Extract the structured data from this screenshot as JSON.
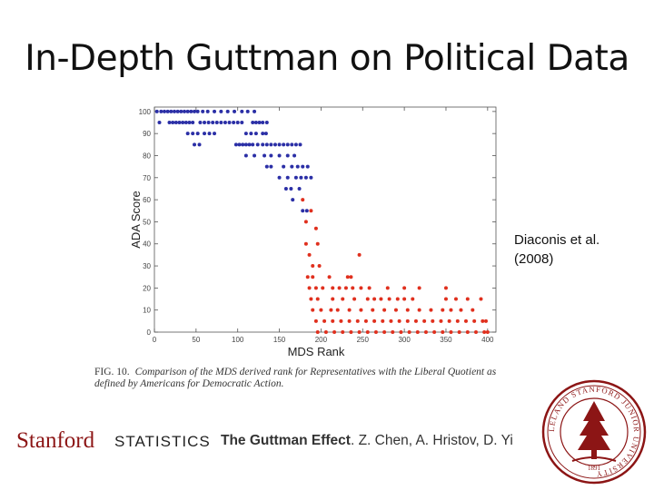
{
  "slide": {
    "title": "In-Depth Guttman on Political Data",
    "citation_line1": "Diaconis et al.",
    "citation_line2": "(2008)",
    "caption_fig": "FIG. 10.",
    "caption_text": "Comparison of the MDS derived rank for Representatives with the Liberal Quotient as defined by Americans for Democratic Action."
  },
  "footer": {
    "logo": "Stanford",
    "department": "STATISTICS",
    "credit_bold": "The Guttman Effect",
    "credit_rest": ". Z. Chen, A. Hristov, D. Yi"
  },
  "seal": {
    "text": "LELAND STANFORD JUNIOR UNIVERSITY",
    "year": "1891"
  },
  "colors": {
    "blue": "#2b2fa6",
    "red": "#e0301e",
    "brand": "#8c1515"
  },
  "chart_data": {
    "type": "scatter",
    "xlabel": "MDS Rank",
    "ylabel": "ADA Score",
    "xlim": [
      0,
      410
    ],
    "ylim": [
      0,
      102
    ],
    "xticks": [
      0,
      50,
      100,
      150,
      200,
      250,
      300,
      350,
      400
    ],
    "yticks": [
      0,
      10,
      20,
      30,
      40,
      50,
      60,
      70,
      80,
      90,
      100
    ],
    "grid": false,
    "series": [
      {
        "color": "#2b2fa6",
        "points": [
          [
            3,
            100
          ],
          [
            8,
            100
          ],
          [
            12,
            100
          ],
          [
            16,
            100
          ],
          [
            20,
            100
          ],
          [
            24,
            100
          ],
          [
            28,
            100
          ],
          [
            32,
            100
          ],
          [
            36,
            100
          ],
          [
            40,
            100
          ],
          [
            44,
            100
          ],
          [
            48,
            100
          ],
          [
            52,
            100
          ],
          [
            58,
            100
          ],
          [
            64,
            100
          ],
          [
            72,
            100
          ],
          [
            80,
            100
          ],
          [
            88,
            100
          ],
          [
            96,
            100
          ],
          [
            105,
            100
          ],
          [
            112,
            100
          ],
          [
            120,
            100
          ],
          [
            6,
            95
          ],
          [
            18,
            95
          ],
          [
            22,
            95
          ],
          [
            26,
            95
          ],
          [
            30,
            95
          ],
          [
            34,
            95
          ],
          [
            38,
            95
          ],
          [
            42,
            95
          ],
          [
            46,
            95
          ],
          [
            55,
            95
          ],
          [
            60,
            95
          ],
          [
            65,
            95
          ],
          [
            70,
            95
          ],
          [
            75,
            95
          ],
          [
            80,
            95
          ],
          [
            85,
            95
          ],
          [
            90,
            95
          ],
          [
            95,
            95
          ],
          [
            100,
            95
          ],
          [
            105,
            95
          ],
          [
            118,
            95
          ],
          [
            122,
            95
          ],
          [
            126,
            95
          ],
          [
            130,
            95
          ],
          [
            135,
            95
          ],
          [
            40,
            90
          ],
          [
            46,
            90
          ],
          [
            52,
            90
          ],
          [
            60,
            90
          ],
          [
            66,
            90
          ],
          [
            72,
            90
          ],
          [
            110,
            90
          ],
          [
            116,
            90
          ],
          [
            122,
            90
          ],
          [
            130,
            90
          ],
          [
            134,
            90
          ],
          [
            98,
            85
          ],
          [
            102,
            85
          ],
          [
            106,
            85
          ],
          [
            110,
            85
          ],
          [
            114,
            85
          ],
          [
            118,
            85
          ],
          [
            124,
            85
          ],
          [
            130,
            85
          ],
          [
            135,
            85
          ],
          [
            140,
            85
          ],
          [
            145,
            85
          ],
          [
            150,
            85
          ],
          [
            155,
            85
          ],
          [
            160,
            85
          ],
          [
            165,
            85
          ],
          [
            170,
            85
          ],
          [
            175,
            85
          ],
          [
            48,
            85
          ],
          [
            54,
            85
          ],
          [
            110,
            80
          ],
          [
            120,
            80
          ],
          [
            132,
            80
          ],
          [
            140,
            80
          ],
          [
            150,
            80
          ],
          [
            160,
            80
          ],
          [
            168,
            80
          ],
          [
            135,
            75
          ],
          [
            140,
            75
          ],
          [
            155,
            75
          ],
          [
            165,
            75
          ],
          [
            172,
            75
          ],
          [
            178,
            75
          ],
          [
            184,
            75
          ],
          [
            150,
            70
          ],
          [
            160,
            70
          ],
          [
            170,
            70
          ],
          [
            176,
            70
          ],
          [
            182,
            70
          ],
          [
            188,
            70
          ],
          [
            158,
            65
          ],
          [
            164,
            65
          ],
          [
            174,
            65
          ],
          [
            166,
            60
          ],
          [
            178,
            55
          ],
          [
            183,
            55
          ]
        ]
      },
      {
        "color": "#e0301e",
        "points": [
          [
            178,
            60
          ],
          [
            188,
            55
          ],
          [
            182,
            50
          ],
          [
            194,
            47
          ],
          [
            182,
            40
          ],
          [
            196,
            40
          ],
          [
            186,
            35
          ],
          [
            246,
            35
          ],
          [
            190,
            30
          ],
          [
            198,
            30
          ],
          [
            184,
            25
          ],
          [
            190,
            25
          ],
          [
            210,
            25
          ],
          [
            232,
            25
          ],
          [
            236,
            25
          ],
          [
            186,
            20
          ],
          [
            194,
            20
          ],
          [
            202,
            20
          ],
          [
            214,
            20
          ],
          [
            222,
            20
          ],
          [
            230,
            20
          ],
          [
            238,
            20
          ],
          [
            248,
            20
          ],
          [
            258,
            20
          ],
          [
            280,
            20
          ],
          [
            300,
            20
          ],
          [
            318,
            20
          ],
          [
            350,
            20
          ],
          [
            188,
            15
          ],
          [
            196,
            15
          ],
          [
            214,
            15
          ],
          [
            226,
            15
          ],
          [
            240,
            15
          ],
          [
            256,
            15
          ],
          [
            264,
            15
          ],
          [
            272,
            15
          ],
          [
            282,
            15
          ],
          [
            292,
            15
          ],
          [
            300,
            15
          ],
          [
            310,
            15
          ],
          [
            350,
            15
          ],
          [
            362,
            15
          ],
          [
            376,
            15
          ],
          [
            392,
            15
          ],
          [
            190,
            10
          ],
          [
            200,
            10
          ],
          [
            212,
            10
          ],
          [
            220,
            10
          ],
          [
            234,
            10
          ],
          [
            248,
            10
          ],
          [
            262,
            10
          ],
          [
            276,
            10
          ],
          [
            290,
            10
          ],
          [
            304,
            10
          ],
          [
            318,
            10
          ],
          [
            332,
            10
          ],
          [
            346,
            10
          ],
          [
            356,
            10
          ],
          [
            368,
            10
          ],
          [
            382,
            10
          ],
          [
            194,
            5
          ],
          [
            204,
            5
          ],
          [
            214,
            5
          ],
          [
            224,
            5
          ],
          [
            234,
            5
          ],
          [
            244,
            5
          ],
          [
            254,
            5
          ],
          [
            264,
            5
          ],
          [
            274,
            5
          ],
          [
            284,
            5
          ],
          [
            294,
            5
          ],
          [
            304,
            5
          ],
          [
            314,
            5
          ],
          [
            324,
            5
          ],
          [
            334,
            5
          ],
          [
            344,
            5
          ],
          [
            354,
            5
          ],
          [
            364,
            5
          ],
          [
            374,
            5
          ],
          [
            384,
            5
          ],
          [
            394,
            5
          ],
          [
            398,
            5
          ],
          [
            196,
            0
          ],
          [
            206,
            0
          ],
          [
            216,
            0
          ],
          [
            226,
            0
          ],
          [
            236,
            0
          ],
          [
            246,
            0
          ],
          [
            256,
            0
          ],
          [
            266,
            0
          ],
          [
            276,
            0
          ],
          [
            286,
            0
          ],
          [
            296,
            0
          ],
          [
            306,
            0
          ],
          [
            316,
            0
          ],
          [
            326,
            0
          ],
          [
            336,
            0
          ],
          [
            346,
            0
          ],
          [
            356,
            0
          ],
          [
            366,
            0
          ],
          [
            376,
            0
          ],
          [
            386,
            0
          ],
          [
            396,
            0
          ],
          [
            400,
            0
          ]
        ]
      }
    ]
  }
}
